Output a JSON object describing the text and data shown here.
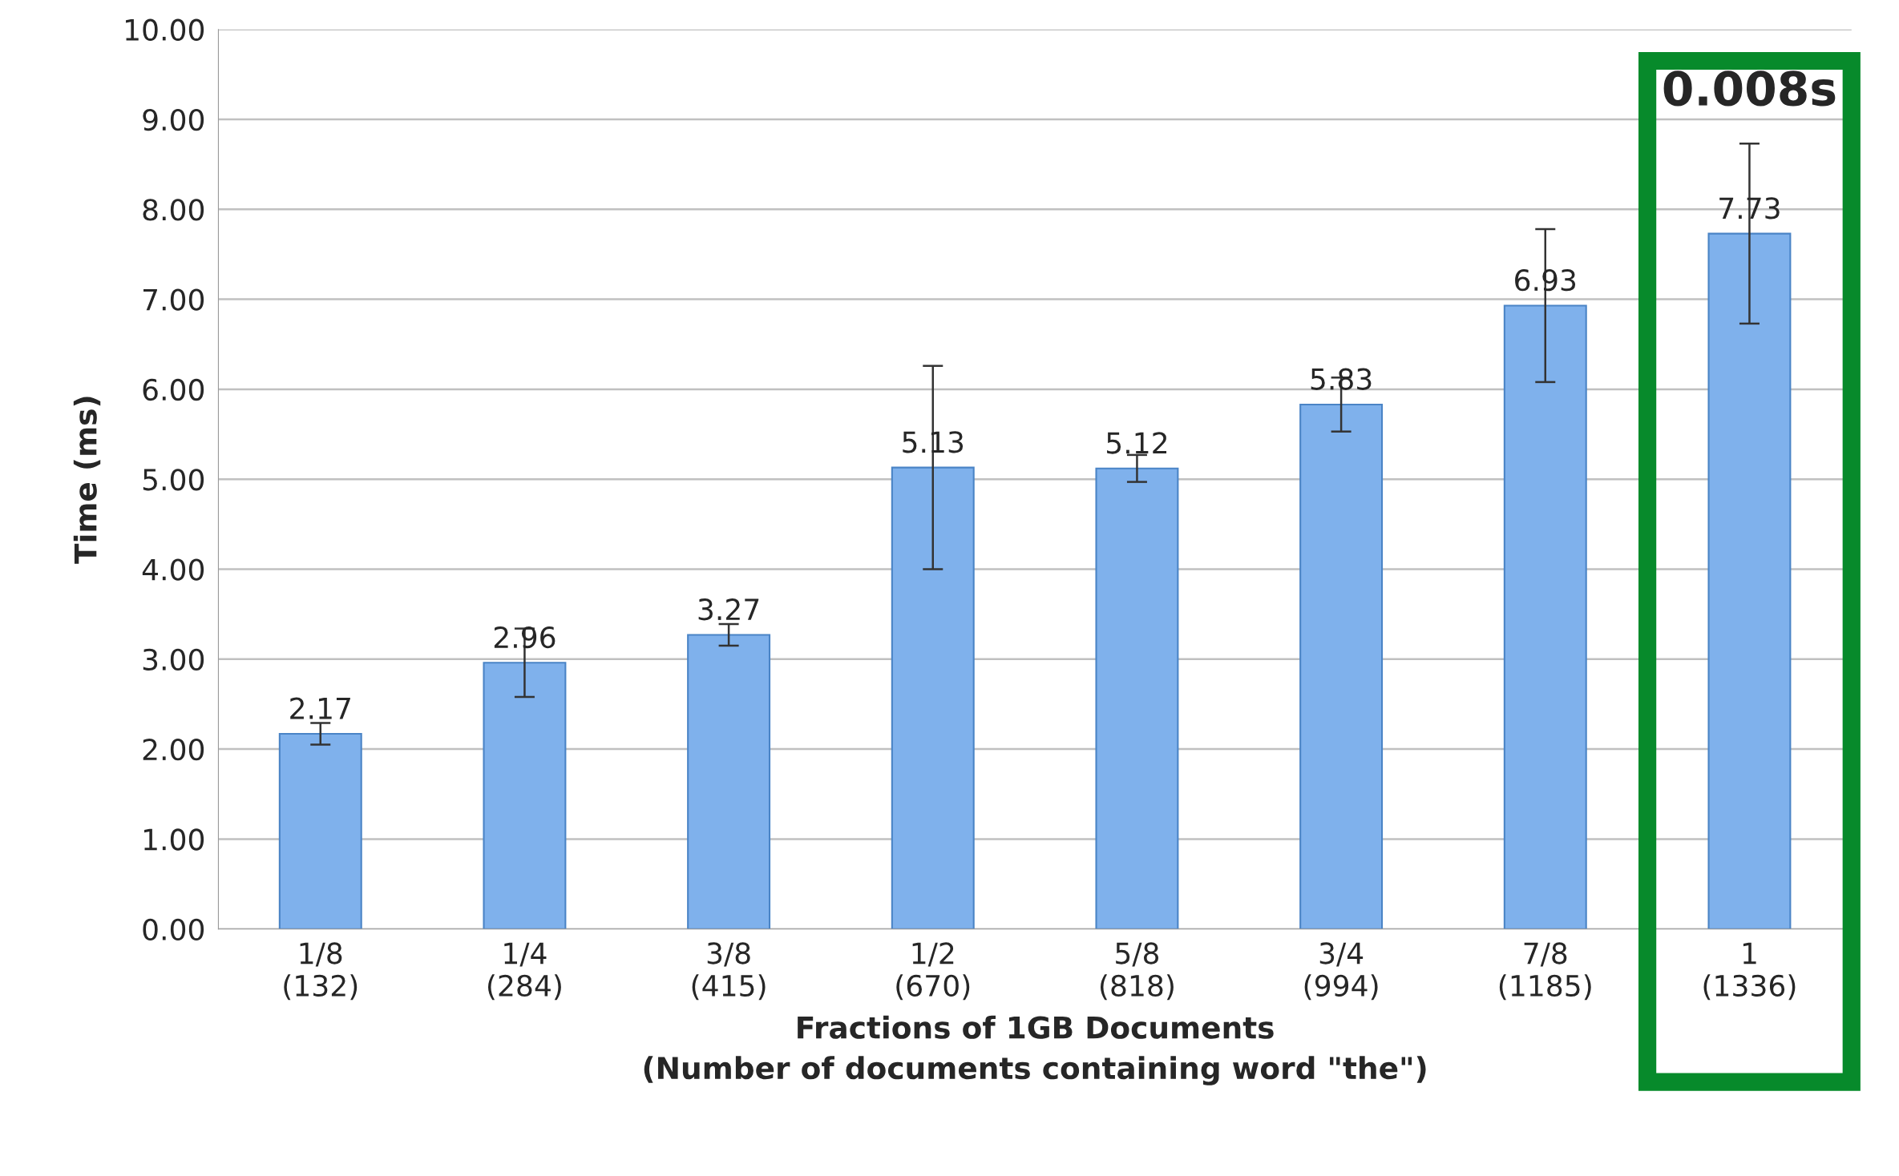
{
  "chart_data": {
    "type": "bar",
    "categories": [
      "1/8\n(132)",
      "1/4\n(284)",
      "3/8\n(415)",
      "1/2\n(670)",
      "5/8\n(818)",
      "3/4\n(994)",
      "7/8\n(1185)",
      "1\n(1336)"
    ],
    "values": [
      2.17,
      2.96,
      3.27,
      5.13,
      5.12,
      5.83,
      6.93,
      7.73
    ],
    "errors": [
      0.12,
      0.38,
      0.12,
      1.13,
      0.15,
      0.3,
      0.85,
      1.0
    ],
    "color": "#7fb1ec",
    "data_labels": true,
    "xlabel": "Fractions of 1GB Documents\n(Number of documents containing word \"the\")",
    "ylabel": "Time (ms)",
    "ylim": [
      0,
      10
    ],
    "yticks": [
      {
        "value": 0,
        "label": "0.00"
      },
      {
        "value": 1,
        "label": "1.00"
      },
      {
        "value": 2,
        "label": "2.00"
      },
      {
        "value": 3,
        "label": "3.00"
      },
      {
        "value": 4,
        "label": "4.00"
      },
      {
        "value": 5,
        "label": "5.00"
      },
      {
        "value": 6,
        "label": "6.00"
      },
      {
        "value": 7,
        "label": "7.00"
      },
      {
        "value": 8,
        "label": "8.00"
      },
      {
        "value": 9,
        "label": "9.00"
      },
      {
        "value": 10,
        "label": "10.00"
      }
    ],
    "grid": "y",
    "annotations": [
      "0.008s"
    ]
  }
}
